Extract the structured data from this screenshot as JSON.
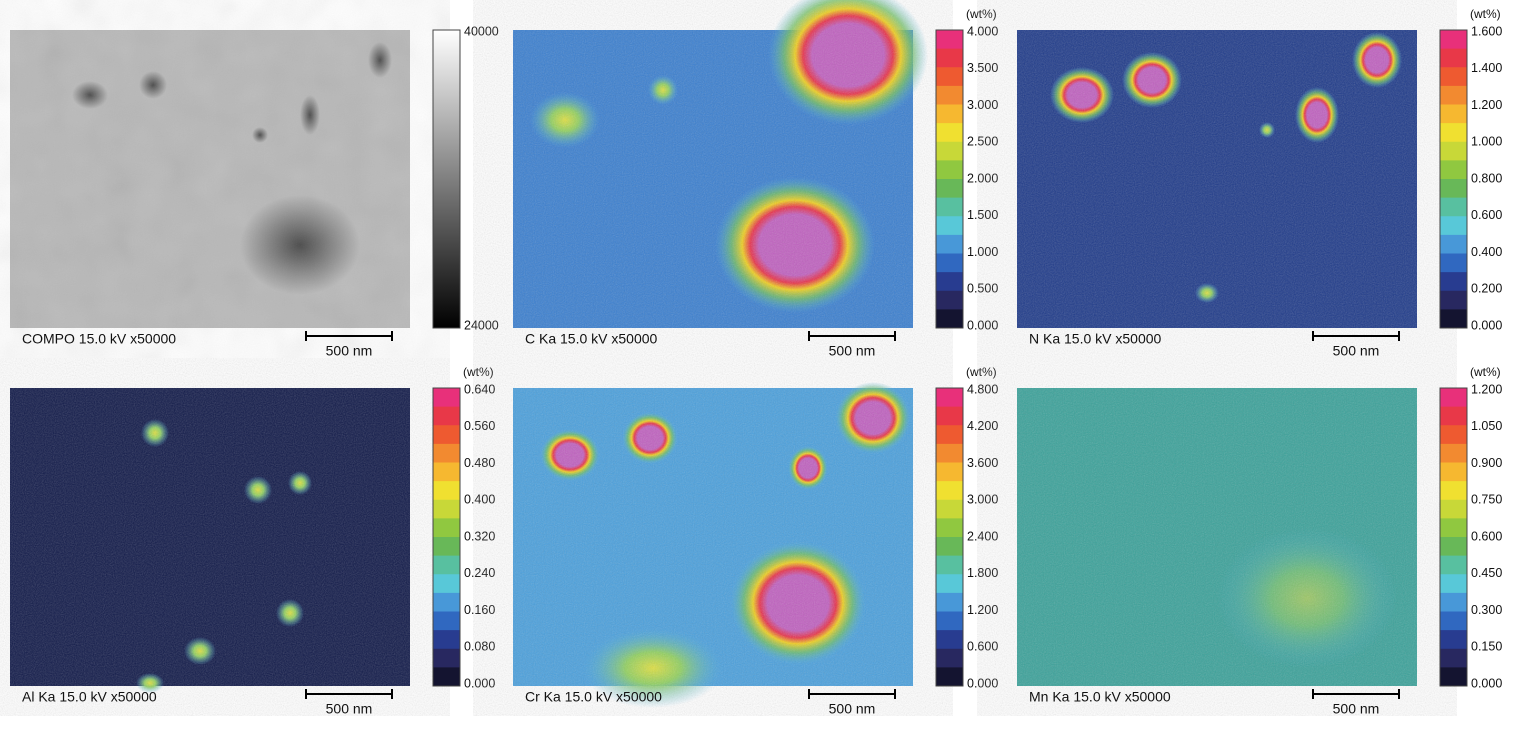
{
  "panels": [
    {
      "label": "COMPO 15.0 kV x50000",
      "scale": "500 nm",
      "ticks": [
        "40000",
        "24000"
      ]
    },
    {
      "label": "C Ka 15.0 kV x50000",
      "scale": "500 nm",
      "unit": "(wt%)",
      "ticks": [
        "4.000",
        "3.500",
        "3.000",
        "2.500",
        "2.000",
        "1.500",
        "1.000",
        "0.500",
        "0.000"
      ]
    },
    {
      "label": "N Ka 15.0 kV x50000",
      "scale": "500 nm",
      "unit": "(wt%)",
      "ticks": [
        "1.600",
        "1.400",
        "1.200",
        "1.000",
        "0.800",
        "0.600",
        "0.400",
        "0.200",
        "0.000"
      ]
    },
    {
      "label": "Al Ka 15.0 kV x50000",
      "scale": "500 nm",
      "unit": "(wt%)",
      "ticks": [
        "0.640",
        "0.560",
        "0.480",
        "0.400",
        "0.320",
        "0.240",
        "0.160",
        "0.080",
        "0.000"
      ]
    },
    {
      "label": "Cr Ka 15.0 kV x50000",
      "scale": "500 nm",
      "unit": "(wt%)",
      "ticks": [
        "4.800",
        "4.200",
        "3.600",
        "3.000",
        "2.400",
        "1.800",
        "1.200",
        "0.600",
        "0.000"
      ]
    },
    {
      "label": "Mn Ka 15.0 kV x50000",
      "scale": "500 nm",
      "unit": "(wt%)",
      "ticks": [
        "1.200",
        "1.050",
        "0.900",
        "0.750",
        "0.600",
        "0.450",
        "0.300",
        "0.150",
        "0.000"
      ]
    }
  ]
}
